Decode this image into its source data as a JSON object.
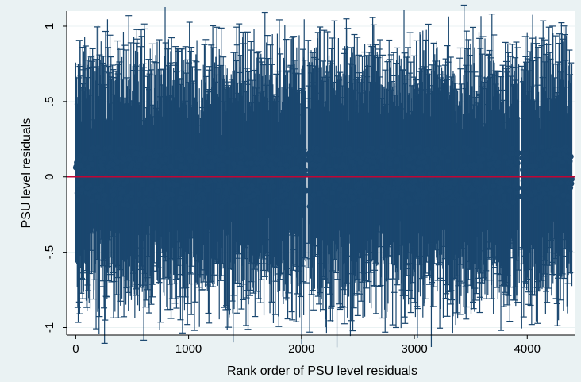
{
  "chart_data": {
    "type": "scatter",
    "title": "",
    "xlabel": "Rank order of PSU level residuals",
    "ylabel": "PSU level residuals",
    "xlim": [
      -80,
      4420
    ],
    "ylim": [
      -1.05,
      1.1
    ],
    "xticks": [
      0,
      1000,
      2000,
      3000,
      4000
    ],
    "xtick_labels": [
      "0",
      "1000",
      "2000",
      "3000",
      "4000"
    ],
    "yticks": [
      -1,
      -0.5,
      0,
      0.5,
      1
    ],
    "ytick_labels": [
      "-1",
      "-.5",
      "0",
      ".5",
      "1"
    ],
    "n_points": 4400,
    "x_range": [
      0,
      4400
    ],
    "y_range": [
      -0.2,
      0.2
    ],
    "error_bar_halfwidth_range": [
      0.5,
      0.85
    ],
    "gaps_x": [
      2050,
      3940
    ],
    "outliers": [
      {
        "x": 470,
        "upper": 1.07
      },
      {
        "x": 4130,
        "upper": 0.92
      },
      {
        "x": 1180,
        "lower": -0.97
      },
      {
        "x": 3580,
        "lower": -0.9
      }
    ],
    "reference_line_y": 0,
    "grid": "horizontal",
    "legend": "none",
    "colors": {
      "background": "#eaf2f3",
      "plot_area": "#ffffff",
      "grid": "#eaf2f3",
      "marker": "#1a476f",
      "reference_line": "#c10534"
    }
  }
}
